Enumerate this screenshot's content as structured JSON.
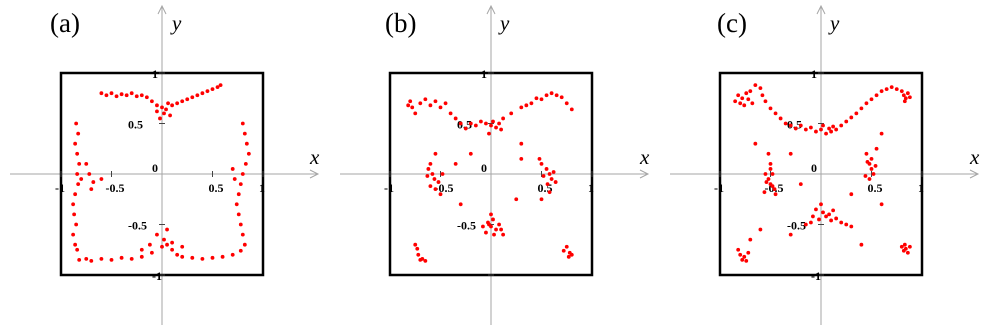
{
  "colors": {
    "points": "#ff0000",
    "frame": "#000000",
    "axes": "#a6a6a6"
  },
  "chart_data": [
    {
      "type": "scatter",
      "panel_label": "(a)",
      "xlabel": "x",
      "ylabel": "y",
      "xlim": [
        -1,
        1
      ],
      "ylim": [
        -1,
        1
      ],
      "x_tick_labels": [
        "-1",
        "-0.5",
        "0",
        "0.5",
        "1"
      ],
      "y_tick_labels": [
        "1",
        "0.5",
        "-0.5",
        "-1"
      ],
      "grid": false,
      "points": [
        [
          -0.6,
          0.8
        ],
        [
          -0.55,
          0.78
        ],
        [
          -0.5,
          0.8
        ],
        [
          -0.45,
          0.77
        ],
        [
          -0.4,
          0.79
        ],
        [
          -0.35,
          0.78
        ],
        [
          -0.3,
          0.8
        ],
        [
          -0.25,
          0.77
        ],
        [
          -0.2,
          0.78
        ],
        [
          -0.15,
          0.76
        ],
        [
          -0.1,
          0.72
        ],
        [
          -0.05,
          0.68
        ],
        [
          0,
          0.66
        ],
        [
          0.02,
          0.6
        ],
        [
          0.04,
          0.64
        ],
        [
          0.06,
          0.7
        ],
        [
          0.1,
          0.68
        ],
        [
          0.15,
          0.7
        ],
        [
          0.2,
          0.72
        ],
        [
          0.25,
          0.74
        ],
        [
          0.3,
          0.76
        ],
        [
          0.35,
          0.78
        ],
        [
          0.4,
          0.8
        ],
        [
          0.45,
          0.82
        ],
        [
          0.5,
          0.84
        ],
        [
          0.55,
          0.86
        ],
        [
          0.58,
          0.88
        ],
        [
          -0.02,
          0.55
        ],
        [
          0.08,
          0.58
        ],
        [
          -0.05,
          0.62
        ],
        [
          -0.85,
          0.5
        ],
        [
          -0.83,
          0.4
        ],
        [
          -0.86,
          0.3
        ],
        [
          -0.84,
          0.2
        ],
        [
          -0.82,
          0.1
        ],
        [
          -0.84,
          0.0
        ],
        [
          -0.8,
          -0.05
        ],
        [
          -0.83,
          -0.1
        ],
        [
          -0.86,
          -0.2
        ],
        [
          -0.88,
          -0.3
        ],
        [
          -0.87,
          -0.4
        ],
        [
          -0.85,
          -0.5
        ],
        [
          -0.88,
          -0.6
        ],
        [
          -0.86,
          -0.7
        ],
        [
          -0.84,
          -0.75
        ],
        [
          -0.72,
          0.0
        ],
        [
          -0.68,
          -0.08
        ],
        [
          -0.75,
          0.1
        ],
        [
          -0.6,
          -0.05
        ],
        [
          -0.7,
          -0.15
        ],
        [
          0.8,
          0.5
        ],
        [
          0.82,
          0.4
        ],
        [
          0.84,
          0.3
        ],
        [
          0.86,
          0.2
        ],
        [
          0.83,
          0.1
        ],
        [
          0.8,
          0.0
        ],
        [
          0.78,
          -0.1
        ],
        [
          0.76,
          -0.2
        ],
        [
          0.74,
          -0.3
        ],
        [
          0.76,
          -0.4
        ],
        [
          0.78,
          -0.5
        ],
        [
          0.8,
          -0.6
        ],
        [
          0.82,
          -0.7
        ],
        [
          0.78,
          -0.76
        ],
        [
          0.7,
          0.05
        ],
        [
          0.72,
          -0.05
        ],
        [
          -0.82,
          -0.85
        ],
        [
          -0.75,
          -0.84
        ],
        [
          -0.7,
          -0.86
        ],
        [
          -0.6,
          -0.84
        ],
        [
          -0.5,
          -0.85
        ],
        [
          -0.4,
          -0.83
        ],
        [
          -0.3,
          -0.84
        ],
        [
          -0.2,
          -0.82
        ],
        [
          -0.1,
          -0.78
        ],
        [
          0,
          -0.72
        ],
        [
          0.05,
          -0.7
        ],
        [
          0.1,
          -0.75
        ],
        [
          0.15,
          -0.8
        ],
        [
          0.2,
          -0.82
        ],
        [
          0.3,
          -0.83
        ],
        [
          0.4,
          -0.84
        ],
        [
          0.5,
          -0.83
        ],
        [
          0.6,
          -0.82
        ],
        [
          0.7,
          -0.8
        ],
        [
          -0.05,
          -0.6
        ],
        [
          0.02,
          -0.65
        ],
        [
          0.1,
          -0.68
        ],
        [
          -0.12,
          -0.7
        ],
        [
          0.05,
          -0.55
        ],
        [
          0.2,
          -0.72
        ],
        [
          -0.2,
          -0.75
        ]
      ]
    },
    {
      "type": "scatter",
      "panel_label": "(b)",
      "xlabel": "x",
      "ylabel": "y",
      "xlim": [
        -1,
        1
      ],
      "ylim": [
        -1,
        1
      ],
      "x_tick_labels": [
        "-1",
        "-0.5",
        "0",
        "0.5",
        "1"
      ],
      "y_tick_labels": [
        "1",
        "0.5",
        "-0.5"
      ],
      "grid": false,
      "points": [
        [
          -0.82,
          0.68
        ],
        [
          -0.8,
          0.72
        ],
        [
          -0.78,
          0.66
        ],
        [
          -0.75,
          0.6
        ],
        [
          -0.7,
          0.7
        ],
        [
          -0.65,
          0.74
        ],
        [
          -0.6,
          0.68
        ],
        [
          -0.55,
          0.72
        ],
        [
          -0.5,
          0.66
        ],
        [
          -0.45,
          0.7
        ],
        [
          -0.4,
          0.6
        ],
        [
          -0.35,
          0.55
        ],
        [
          -0.3,
          0.5
        ],
        [
          -0.25,
          0.45
        ],
        [
          -0.2,
          0.5
        ],
        [
          -0.15,
          0.48
        ],
        [
          -0.1,
          0.52
        ],
        [
          -0.05,
          0.5
        ],
        [
          0,
          0.48
        ],
        [
          0.02,
          0.52
        ],
        [
          0.05,
          0.46
        ],
        [
          0.08,
          0.5
        ],
        [
          0.1,
          0.44
        ],
        [
          -0.02,
          0.4
        ],
        [
          0.12,
          0.55
        ],
        [
          0.2,
          0.6
        ],
        [
          0.3,
          0.66
        ],
        [
          0.4,
          0.7
        ],
        [
          0.5,
          0.74
        ],
        [
          0.55,
          0.78
        ],
        [
          0.6,
          0.8
        ],
        [
          0.65,
          0.78
        ],
        [
          0.7,
          0.76
        ],
        [
          0.75,
          0.7
        ],
        [
          0.8,
          0.64
        ],
        [
          0.45,
          0.75
        ],
        [
          0.35,
          0.68
        ],
        [
          -0.55,
          0.2
        ],
        [
          -0.6,
          0.1
        ],
        [
          -0.58,
          0.0
        ],
        [
          -0.56,
          -0.05
        ],
        [
          -0.6,
          -0.12
        ],
        [
          -0.55,
          -0.15
        ],
        [
          -0.52,
          -0.08
        ],
        [
          -0.62,
          0.05
        ],
        [
          -0.48,
          0.0
        ],
        [
          -0.5,
          -0.2
        ],
        [
          -0.63,
          -0.02
        ],
        [
          0.5,
          0.1
        ],
        [
          0.55,
          0.05
        ],
        [
          0.58,
          0.0
        ],
        [
          0.6,
          -0.05
        ],
        [
          0.56,
          -0.1
        ],
        [
          0.52,
          -0.02
        ],
        [
          0.62,
          0.02
        ],
        [
          0.48,
          0.15
        ],
        [
          0.58,
          -0.18
        ],
        [
          0.5,
          -0.25
        ],
        [
          0.64,
          -0.08
        ],
        [
          0,
          -0.4
        ],
        [
          0.02,
          -0.45
        ],
        [
          -0.02,
          -0.5
        ],
        [
          0,
          -0.52
        ],
        [
          0.05,
          -0.55
        ],
        [
          -0.05,
          -0.58
        ],
        [
          0.03,
          -0.6
        ],
        [
          -0.03,
          -0.48
        ],
        [
          0.08,
          -0.5
        ],
        [
          -0.08,
          -0.52
        ],
        [
          0.1,
          -0.55
        ],
        [
          0.12,
          -0.6
        ],
        [
          -0.75,
          -0.7
        ],
        [
          -0.72,
          -0.8
        ],
        [
          -0.7,
          -0.85
        ],
        [
          -0.68,
          -0.84
        ],
        [
          -0.65,
          -0.86
        ],
        [
          -0.73,
          -0.74
        ],
        [
          0.75,
          -0.72
        ],
        [
          0.78,
          -0.78
        ],
        [
          0.8,
          -0.8
        ],
        [
          0.77,
          -0.82
        ],
        [
          0.72,
          -0.76
        ],
        [
          -0.3,
          -0.3
        ],
        [
          0.3,
          0.3
        ],
        [
          -0.2,
          0.2
        ],
        [
          0.25,
          -0.25
        ],
        [
          -0.35,
          0.1
        ],
        [
          0.3,
          0.15
        ]
      ]
    },
    {
      "type": "scatter",
      "panel_label": "(c)",
      "xlabel": "x",
      "ylabel": "y",
      "xlim": [
        -1,
        1
      ],
      "ylim": [
        -1,
        1
      ],
      "x_tick_labels": [
        "-1",
        "-0.5",
        "0",
        "0.5",
        "1"
      ],
      "y_tick_labels": [
        "1",
        "0.5",
        "-0.5",
        "-1"
      ],
      "grid": false,
      "points": [
        [
          -0.85,
          0.72
        ],
        [
          -0.82,
          0.78
        ],
        [
          -0.8,
          0.7
        ],
        [
          -0.78,
          0.75
        ],
        [
          -0.76,
          0.68
        ],
        [
          -0.74,
          0.8
        ],
        [
          -0.72,
          0.74
        ],
        [
          -0.7,
          0.82
        ],
        [
          -0.68,
          0.7
        ],
        [
          -0.65,
          0.88
        ],
        [
          -0.6,
          0.85
        ],
        [
          -0.58,
          0.78
        ],
        [
          -0.55,
          0.72
        ],
        [
          -0.5,
          0.65
        ],
        [
          -0.45,
          0.6
        ],
        [
          -0.4,
          0.55
        ],
        [
          -0.35,
          0.5
        ],
        [
          -0.3,
          0.48
        ],
        [
          -0.25,
          0.45
        ],
        [
          -0.2,
          0.48
        ],
        [
          -0.15,
          0.44
        ],
        [
          -0.1,
          0.46
        ],
        [
          -0.05,
          0.42
        ],
        [
          0,
          0.44
        ],
        [
          0.02,
          0.48
        ],
        [
          0.05,
          0.4
        ],
        [
          0.08,
          0.45
        ],
        [
          0.1,
          0.42
        ],
        [
          0.12,
          0.47
        ],
        [
          0.15,
          0.44
        ],
        [
          0.2,
          0.48
        ],
        [
          0.25,
          0.52
        ],
        [
          0.3,
          0.56
        ],
        [
          0.35,
          0.6
        ],
        [
          0.4,
          0.65
        ],
        [
          0.45,
          0.7
        ],
        [
          0.5,
          0.74
        ],
        [
          0.55,
          0.78
        ],
        [
          0.6,
          0.82
        ],
        [
          0.65,
          0.84
        ],
        [
          0.7,
          0.86
        ],
        [
          0.75,
          0.84
        ],
        [
          0.8,
          0.82
        ],
        [
          0.82,
          0.78
        ],
        [
          0.84,
          0.75
        ],
        [
          0.86,
          0.8
        ],
        [
          0.83,
          0.72
        ],
        [
          0.88,
          0.76
        ],
        [
          -0.52,
          0.2
        ],
        [
          -0.5,
          0.1
        ],
        [
          -0.48,
          0.0
        ],
        [
          -0.52,
          -0.05
        ],
        [
          -0.5,
          -0.1
        ],
        [
          -0.46,
          -0.15
        ],
        [
          -0.54,
          -0.08
        ],
        [
          -0.5,
          0.05
        ],
        [
          -0.45,
          -0.2
        ],
        [
          -0.55,
          0.0
        ],
        [
          -0.48,
          -0.12
        ],
        [
          -0.56,
          -0.18
        ],
        [
          0.45,
          0.2
        ],
        [
          0.48,
          0.1
        ],
        [
          0.5,
          0.05
        ],
        [
          0.52,
          0.0
        ],
        [
          0.48,
          -0.05
        ],
        [
          0.46,
          0.12
        ],
        [
          0.54,
          0.08
        ],
        [
          0.5,
          0.15
        ],
        [
          0.44,
          -0.02
        ],
        [
          0.55,
          0.25
        ],
        [
          0,
          -0.3
        ],
        [
          -0.05,
          -0.35
        ],
        [
          0.02,
          -0.38
        ],
        [
          0.05,
          -0.42
        ],
        [
          -0.02,
          -0.45
        ],
        [
          0.08,
          -0.4
        ],
        [
          -0.08,
          -0.42
        ],
        [
          0.1,
          -0.46
        ],
        [
          0.15,
          -0.44
        ],
        [
          0.2,
          -0.48
        ],
        [
          -0.1,
          -0.48
        ],
        [
          0.25,
          -0.5
        ],
        [
          0.3,
          -0.52
        ],
        [
          -0.15,
          -0.5
        ],
        [
          0.12,
          -0.36
        ],
        [
          -0.8,
          -0.8
        ],
        [
          -0.78,
          -0.85
        ],
        [
          -0.76,
          -0.82
        ],
        [
          -0.74,
          -0.86
        ],
        [
          -0.72,
          -0.78
        ],
        [
          -0.82,
          -0.75
        ],
        [
          -0.7,
          -0.65
        ],
        [
          -0.6,
          -0.55
        ],
        [
          0.8,
          -0.72
        ],
        [
          0.82,
          -0.76
        ],
        [
          0.84,
          -0.74
        ],
        [
          0.86,
          -0.78
        ],
        [
          0.83,
          -0.7
        ],
        [
          0.88,
          -0.72
        ],
        [
          -0.3,
          -0.6
        ],
        [
          0.4,
          -0.7
        ],
        [
          0.6,
          -0.3
        ],
        [
          -0.3,
          0.2
        ],
        [
          0.3,
          -0.2
        ],
        [
          -0.2,
          -0.1
        ],
        [
          0.6,
          0.4
        ],
        [
          -0.65,
          0.3
        ]
      ]
    }
  ]
}
